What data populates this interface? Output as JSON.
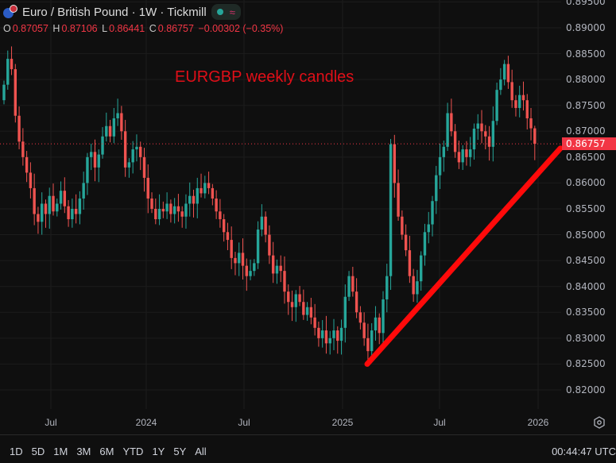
{
  "header": {
    "title": "Euro / British Pound · 1W · Tickmill",
    "status_icon": "market-open-dot",
    "approx_icon": "≈",
    "ohlc": {
      "o_label": "O",
      "o": "0.87057",
      "h_label": "H",
      "h": "0.87106",
      "l_label": "L",
      "l": "0.86441",
      "c_label": "C",
      "c": "0.86757",
      "change": "−0.00302 (−0.35%)"
    }
  },
  "annotation": "EURGBP weekly candles",
  "bottom_bar": {
    "ranges": [
      "1D",
      "5D",
      "1M",
      "3M",
      "6M",
      "YTD",
      "1Y",
      "5Y",
      "All"
    ],
    "clock": "00:44:47 UTC"
  },
  "colors": {
    "up": "#26a69a",
    "down": "#ef5350",
    "trendline": "#ff0a0a",
    "price_tag": "#f23645"
  },
  "chart_data": {
    "type": "candlestick",
    "title": "Euro / British Pound · 1W · Tickmill",
    "interval": "1W",
    "ylim": [
      0.8175,
      0.8955
    ],
    "y_ticks": [
      "0.89500",
      "0.89000",
      "0.88500",
      "0.88000",
      "0.87500",
      "0.87000",
      "0.86500",
      "0.86000",
      "0.85500",
      "0.85000",
      "0.84500",
      "0.84000",
      "0.83500",
      "0.83000",
      "0.82500",
      "0.82000"
    ],
    "x_ticks": [
      "Jul",
      "2024",
      "Jul",
      "2025",
      "Jul",
      "2026"
    ],
    "last_price": "0.86757",
    "first_open": 0.876,
    "closes": [
      0.879,
      0.884,
      0.882,
      0.873,
      0.868,
      0.865,
      0.862,
      0.859,
      0.854,
      0.8525,
      0.856,
      0.854,
      0.8575,
      0.8545,
      0.856,
      0.8585,
      0.8555,
      0.853,
      0.855,
      0.854,
      0.857,
      0.86,
      0.865,
      0.866,
      0.863,
      0.8655,
      0.869,
      0.871,
      0.869,
      0.8725,
      0.8735,
      0.87,
      0.863,
      0.864,
      0.8665,
      0.867,
      0.865,
      0.861,
      0.857,
      0.855,
      0.853,
      0.855,
      0.8545,
      0.856,
      0.854,
      0.8555,
      0.8545,
      0.8535,
      0.856,
      0.8575,
      0.856,
      0.859,
      0.858,
      0.86,
      0.859,
      0.857,
      0.8545,
      0.853,
      0.8505,
      0.849,
      0.8455,
      0.8445,
      0.8465,
      0.844,
      0.842,
      0.843,
      0.8445,
      0.851,
      0.8535,
      0.85,
      0.846,
      0.8425,
      0.844,
      0.843,
      0.839,
      0.837,
      0.836,
      0.8385,
      0.837,
      0.8345,
      0.836,
      0.834,
      0.832,
      0.83,
      0.8315,
      0.829,
      0.83,
      0.8315,
      0.8295,
      0.832,
      0.838,
      0.842,
      0.839,
      0.835,
      0.833,
      0.83,
      0.8275,
      0.8315,
      0.834,
      0.831,
      0.8375,
      0.842,
      0.8675,
      0.86,
      0.8535,
      0.85,
      0.847,
      0.842,
      0.8385,
      0.841,
      0.846,
      0.8505,
      0.852,
      0.8565,
      0.8615,
      0.865,
      0.867,
      0.8735,
      0.87,
      0.866,
      0.864,
      0.8665,
      0.865,
      0.8665,
      0.8705,
      0.8715,
      0.87,
      0.869,
      0.867,
      0.872,
      0.878,
      0.88,
      0.883,
      0.8795,
      0.876,
      0.8745,
      0.877,
      0.876,
      0.8725,
      0.87057,
      0.86757
    ],
    "last_candle": {
      "open": 0.87057,
      "high": 0.87106,
      "low": 0.86441,
      "close": 0.86757
    },
    "trendline": {
      "from_price": 0.825,
      "to_price": 0.8667,
      "description_color": "red"
    }
  }
}
